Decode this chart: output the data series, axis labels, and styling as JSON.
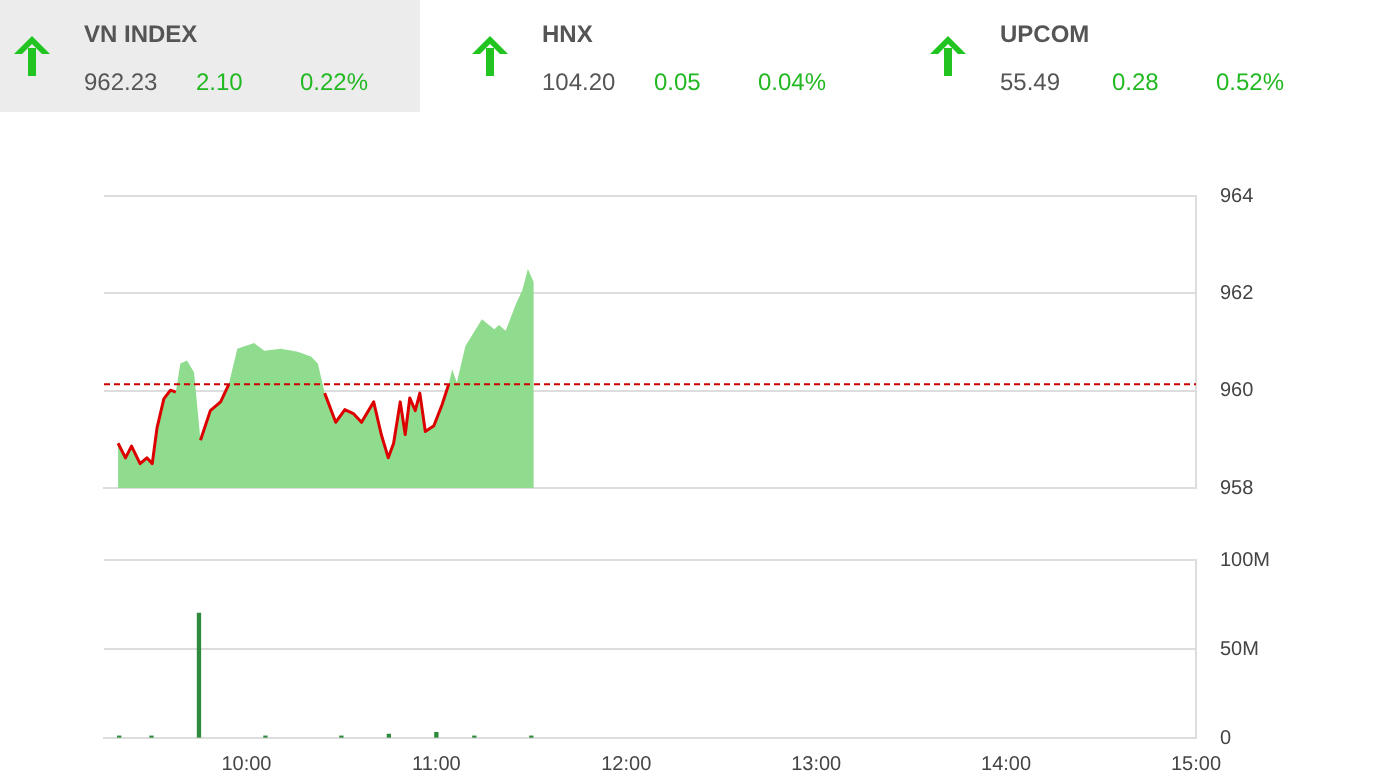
{
  "chart_data": [
    {
      "type": "other",
      "categories": [
        "VN INDEX",
        "HNX",
        "UPCOM"
      ],
      "series": [
        {
          "values": [
            962.23,
            104.2,
            55.49
          ],
          "value_labels": [
            "962.23",
            "104.20",
            "55.49"
          ]
        },
        {
          "color": "#22b822",
          "values": [
            2.1,
            0.05,
            0.28
          ],
          "value_labels": [
            "2.10",
            "0.05",
            "0.28"
          ]
        },
        {
          "color": "#22b822",
          "values": [
            0.22,
            0.04,
            0.52
          ],
          "value_labels": [
            "0.22%",
            "0.04%",
            "0.52%"
          ]
        }
      ]
    },
    {
      "type": "area",
      "xlim": [
        9.25,
        15
      ],
      "ylim": [
        958,
        964
      ],
      "yticks": [
        958,
        960,
        962,
        964
      ],
      "tick_labels": "y",
      "grid": "y",
      "series": [
        {
          "color": "#8fdc8f",
          "x": [
            9.324,
            9.363,
            9.395,
            9.44,
            9.476,
            9.504,
            9.529,
            9.565,
            9.6,
            9.628,
            9.652,
            9.687,
            9.724,
            9.758,
            9.81,
            9.864,
            9.907,
            9.952,
            10.04,
            10.094,
            10.182,
            10.27,
            10.34,
            10.376,
            10.412,
            10.47,
            10.518,
            10.563,
            10.606,
            10.67,
            10.71,
            10.747,
            10.775,
            10.81,
            10.836,
            10.86,
            10.889,
            10.913,
            10.942,
            10.987,
            11.03,
            11.065,
            11.083,
            11.108,
            11.153,
            11.24,
            11.305,
            11.33,
            11.365,
            11.418,
            11.453,
            11.482,
            11.513
          ],
          "values": [
            958.92,
            958.62,
            958.86,
            958.5,
            958.62,
            958.5,
            959.23,
            959.83,
            960.01,
            959.97,
            960.56,
            960.62,
            960.38,
            958.98,
            959.59,
            959.77,
            960.13,
            960.86,
            960.98,
            960.82,
            960.86,
            960.8,
            960.7,
            960.56,
            959.95,
            959.35,
            959.61,
            959.53,
            959.35,
            959.77,
            959.1,
            958.62,
            958.92,
            959.77,
            959.1,
            959.85,
            959.59,
            959.95,
            959.16,
            959.28,
            959.71,
            960.13,
            960.44,
            960.17,
            960.92,
            961.47,
            961.26,
            961.35,
            961.23,
            961.77,
            962.07,
            962.5,
            962.23
          ]
        },
        {
          "type": "line",
          "color": "#dd0000",
          "x": [
            9.324,
            9.363,
            9.395,
            9.44,
            9.476,
            9.504,
            9.529,
            9.565,
            9.6,
            9.628,
            9.652,
            9.687,
            9.724,
            9.758,
            9.81,
            9.864,
            9.907,
            9.952,
            10.04,
            10.094,
            10.182,
            10.27,
            10.34,
            10.376,
            10.412,
            10.47,
            10.518,
            10.563,
            10.606,
            10.67,
            10.71,
            10.747,
            10.775,
            10.81,
            10.836,
            10.86,
            10.889,
            10.913,
            10.942,
            10.987,
            11.03,
            11.065
          ],
          "values": [
            958.92,
            958.62,
            958.86,
            958.5,
            958.62,
            958.5,
            959.23,
            959.83,
            960.01,
            959.97,
            null,
            null,
            null,
            958.98,
            959.59,
            959.77,
            960.13,
            null,
            null,
            null,
            null,
            null,
            null,
            null,
            959.95,
            959.35,
            959.61,
            959.53,
            959.35,
            959.77,
            959.1,
            958.62,
            958.92,
            959.77,
            959.1,
            959.85,
            959.59,
            959.95,
            959.16,
            959.28,
            959.71,
            960.13
          ]
        }
      ],
      "ref_lines": [
        {
          "axis": "y",
          "value": 960.13,
          "color": "#cc0000",
          "line_style": "dashed"
        }
      ]
    },
    {
      "type": "bar",
      "xlim": [
        9.25,
        15
      ],
      "xticks": [
        {
          "value": 10,
          "label": "10:00"
        },
        {
          "value": 11,
          "label": "11:00"
        },
        {
          "value": 12,
          "label": "12:00"
        },
        {
          "value": 13,
          "label": "13:00"
        },
        {
          "value": 14,
          "label": "14:00"
        },
        {
          "value": 15,
          "label": "15:00"
        }
      ],
      "ylim": [
        0,
        100000000
      ],
      "yticks": [
        0,
        {
          "value": 50000000,
          "label": "50M"
        },
        {
          "value": 100000000,
          "label": "100M"
        }
      ],
      "grid": "y",
      "series": [
        {
          "color": "#2e8b3e",
          "x": [
            9.33,
            9.5,
            9.75,
            10.1,
            10.5,
            10.75,
            11.0,
            11.2,
            11.5
          ],
          "values": [
            1000000,
            1000000,
            70000000,
            1000000,
            1000000,
            2000000,
            3000000,
            1000000,
            1000000
          ]
        }
      ]
    }
  ]
}
